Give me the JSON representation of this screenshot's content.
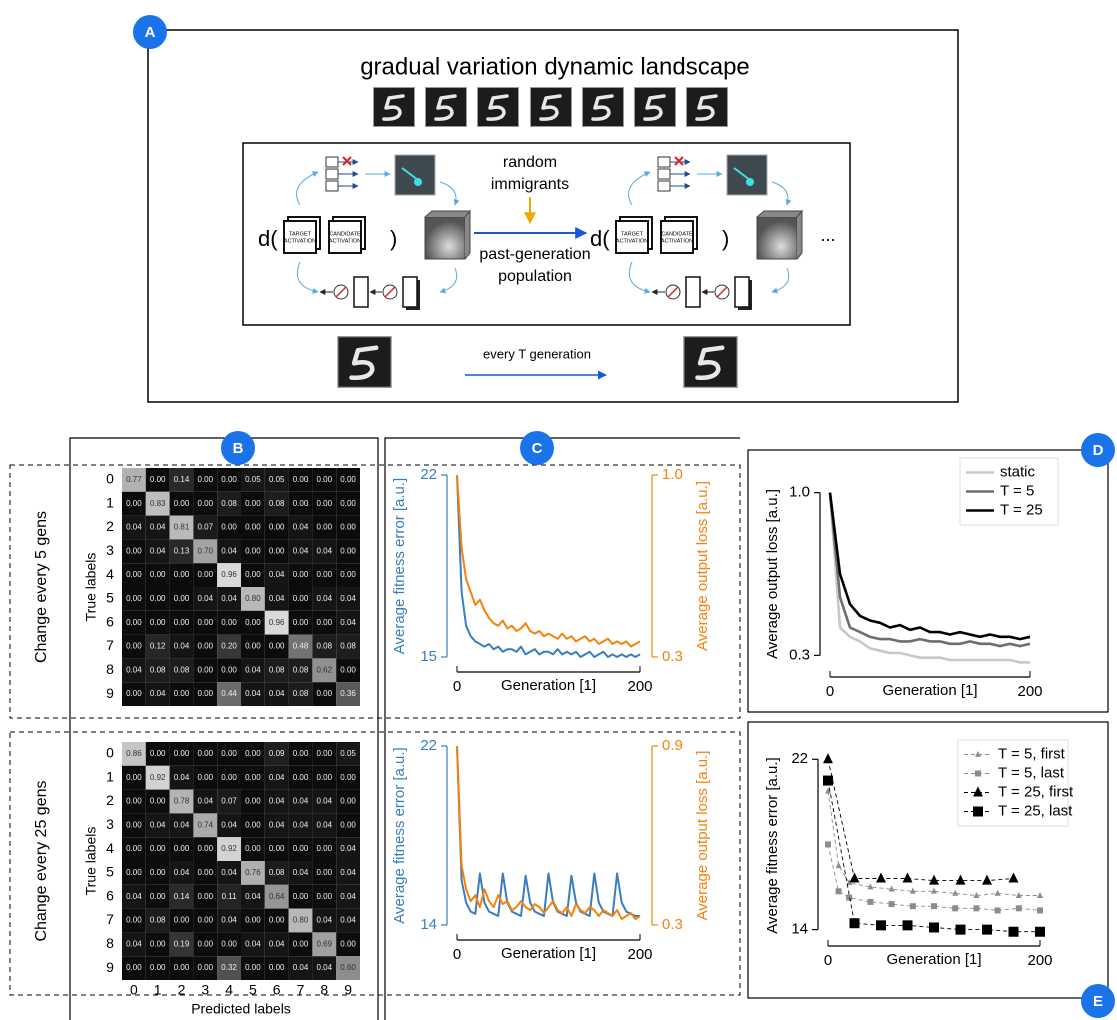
{
  "panels": [
    "A",
    "B",
    "C",
    "D",
    "E"
  ],
  "diagram": {
    "title": "gradual variation dynamic landscape",
    "d_open": "d(",
    "d_close": ")",
    "target_lines": [
      "TARGET",
      "ACTIVATION"
    ],
    "candidate_lines": [
      "CANDIDATE",
      "ACTIVATION"
    ],
    "immigrants_lines": [
      "random",
      "immigrants"
    ],
    "population_lines": [
      "past-generation",
      "population"
    ],
    "ellipsis": "...",
    "every": "every T generation"
  },
  "chart_data": [
    {
      "type": "heatmap",
      "title": "Change every 5 gens",
      "ylabel": "True labels",
      "row_labels": [
        "0",
        "1",
        "2",
        "3",
        "4",
        "5",
        "6",
        "7",
        "8",
        "9"
      ],
      "values": [
        [
          0.77,
          0.0,
          0.14,
          0.0,
          0.0,
          0.05,
          0.05,
          0.0,
          0.0,
          0.0
        ],
        [
          0.0,
          0.83,
          0.0,
          0.0,
          0.08,
          0.0,
          0.08,
          0.0,
          0.0,
          0.0
        ],
        [
          0.04,
          0.04,
          0.81,
          0.07,
          0.0,
          0.0,
          0.0,
          0.04,
          0.0,
          0.0
        ],
        [
          0.0,
          0.04,
          0.13,
          0.7,
          0.04,
          0.0,
          0.0,
          0.04,
          0.04,
          0.0
        ],
        [
          0.0,
          0.0,
          0.0,
          0.0,
          0.96,
          0.0,
          0.04,
          0.0,
          0.0,
          0.0
        ],
        [
          0.0,
          0.0,
          0.0,
          0.04,
          0.04,
          0.8,
          0.04,
          0.0,
          0.04,
          0.04
        ],
        [
          0.0,
          0.0,
          0.0,
          0.0,
          0.0,
          0.0,
          0.96,
          0.0,
          0.0,
          0.04
        ],
        [
          0.0,
          0.12,
          0.04,
          0.0,
          0.2,
          0.0,
          0.0,
          0.48,
          0.08,
          0.08
        ],
        [
          0.04,
          0.08,
          0.08,
          0.0,
          0.0,
          0.04,
          0.08,
          0.08,
          0.62,
          0.0
        ],
        [
          0.0,
          0.04,
          0.0,
          0.0,
          0.44,
          0.04,
          0.04,
          0.08,
          0.0,
          0.36
        ]
      ],
      "value_labels": [
        [
          "0.77",
          "0.00",
          "0.14",
          "0.00",
          "0.00",
          "0.05",
          "0.05",
          "0.00",
          "0.00",
          "0.00"
        ],
        [
          "0.00",
          "0.83",
          "0.00",
          "0.00",
          "0.08",
          "0.00",
          "0.08",
          "0.00",
          "0.00",
          "0.00"
        ],
        [
          "0.04",
          "0.04",
          "0.81",
          "0.07",
          "0.00",
          "0.00",
          "0.00",
          "0.04",
          "0.00",
          "0.00"
        ],
        [
          "0.00",
          "0.04",
          "0.13",
          "0.70",
          "0.04",
          "0.00",
          "0.00",
          "0.04",
          "0.04",
          "0.00"
        ],
        [
          "0.00",
          "0.00",
          "0.00",
          "0.00",
          "0.96",
          "0.00",
          "0.04",
          "0.00",
          "0.00",
          "0.00"
        ],
        [
          "0.00",
          "0.00",
          "0.00",
          "0.04",
          "0.04",
          "0.80",
          "0.04",
          "0.00",
          "0.04",
          "0.04"
        ],
        [
          "0.00",
          "0.00",
          "0.00",
          "0.00",
          "0.00",
          "0.00",
          "0.96",
          "0.00",
          "0.00",
          "0.04"
        ],
        [
          "0.00",
          "0.12",
          "0.04",
          "0.00",
          "0.20",
          "0.00",
          "0.00",
          "0.48",
          "0.08",
          "0.08"
        ],
        [
          "0.04",
          "0.08",
          "0.08",
          "0.00",
          "0.00",
          "0.04",
          "0.08",
          "0.08",
          "0.62",
          "0.00"
        ],
        [
          "0.00",
          "0.04",
          "0.00",
          "0.00",
          "0.44",
          "0.04",
          "0.04",
          "0.08",
          "0.00",
          "0.36"
        ]
      ]
    },
    {
      "type": "heatmap",
      "title": "Change every 25 gens",
      "ylabel": "True labels",
      "xlabel": "Predicted labels",
      "row_labels": [
        "0",
        "1",
        "2",
        "3",
        "4",
        "5",
        "6",
        "7",
        "8",
        "9"
      ],
      "col_labels": [
        "0",
        "1",
        "2",
        "3",
        "4",
        "5",
        "6",
        "7",
        "8",
        "9"
      ],
      "values": [
        [
          0.86,
          0.0,
          0.0,
          0.0,
          0.0,
          0.0,
          0.09,
          0.0,
          0.0,
          0.05
        ],
        [
          0.0,
          0.92,
          0.04,
          0.0,
          0.0,
          0.0,
          0.04,
          0.0,
          0.0,
          0.0
        ],
        [
          0.0,
          0.0,
          0.78,
          0.04,
          0.07,
          0.0,
          0.04,
          0.04,
          0.04,
          0.0
        ],
        [
          0.0,
          0.04,
          0.04,
          0.74,
          0.04,
          0.0,
          0.04,
          0.04,
          0.04,
          0.0
        ],
        [
          0.0,
          0.0,
          0.0,
          0.0,
          0.92,
          0.0,
          0.0,
          0.0,
          0.0,
          0.04
        ],
        [
          0.0,
          0.0,
          0.04,
          0.0,
          0.04,
          0.76,
          0.08,
          0.04,
          0.0,
          0.04
        ],
        [
          0.04,
          0.0,
          0.14,
          0.0,
          0.11,
          0.04,
          0.64,
          0.0,
          0.0,
          0.04
        ],
        [
          0.0,
          0.08,
          0.0,
          0.0,
          0.04,
          0.0,
          0.0,
          0.8,
          0.04,
          0.04
        ],
        [
          0.04,
          0.0,
          0.19,
          0.0,
          0.0,
          0.04,
          0.04,
          0.0,
          0.69,
          0.0
        ],
        [
          0.0,
          0.0,
          0.0,
          0.0,
          0.32,
          0.0,
          0.0,
          0.04,
          0.04,
          0.6
        ]
      ],
      "value_labels": [
        [
          "0.86",
          "0.00",
          "0.00",
          "0.00",
          "0.00",
          "0.00",
          "0.09",
          "0.00",
          "0.00",
          "0.05"
        ],
        [
          "0.00",
          "0.92",
          "0.04",
          "0.00",
          "0.00",
          "0.00",
          "0.04",
          "0.00",
          "0.00",
          "0.00"
        ],
        [
          "0.00",
          "0.00",
          "0.78",
          "0.04",
          "0.07",
          "0.00",
          "0.04",
          "0.04",
          "0.04",
          "0.00"
        ],
        [
          "0.00",
          "0.04",
          "0.04",
          "0.74",
          "0.04",
          "0.00",
          "0.04",
          "0.04",
          "0.04",
          "0.00"
        ],
        [
          "0.00",
          "0.00",
          "0.00",
          "0.00",
          "0.92",
          "0.00",
          "0.00",
          "0.00",
          "0.00",
          "0.04"
        ],
        [
          "0.00",
          "0.00",
          "0.04",
          "0.00",
          "0.04",
          "0.76",
          "0.08",
          "0.04",
          "0.00",
          "0.04"
        ],
        [
          "0.04",
          "0.00",
          "0.14",
          "0.00",
          "0.11",
          "0.04",
          "0.64",
          "0.00",
          "0.00",
          "0.04"
        ],
        [
          "0.00",
          "0.08",
          "0.00",
          "0.00",
          "0.04",
          "0.00",
          "0.00",
          "0.80",
          "0.04",
          "0.04"
        ],
        [
          "0.04",
          "0.00",
          "0.19",
          "0.00",
          "0.00",
          "0.04",
          "0.04",
          "0.00",
          "0.69",
          "0.00"
        ],
        [
          "0.00",
          "0.00",
          "0.00",
          "0.00",
          "0.32",
          "0.00",
          "0.00",
          "0.04",
          "0.04",
          "0.60"
        ]
      ]
    },
    {
      "type": "line",
      "xlabel": "Generation [1]",
      "ylabel": "Average fitness error [a.u.]",
      "y2label": "Average output loss [a.u.]",
      "axis_colors": true,
      "x": [
        0,
        5,
        10,
        15,
        20,
        25,
        30,
        35,
        40,
        45,
        50,
        55,
        60,
        65,
        70,
        75,
        80,
        85,
        90,
        95,
        100,
        105,
        110,
        115,
        120,
        125,
        130,
        135,
        140,
        145,
        150,
        155,
        160,
        165,
        170,
        175,
        180,
        185,
        190,
        195,
        200
      ],
      "xlim": [
        0,
        200
      ],
      "xticks": [
        0,
        200
      ],
      "ylim": [
        15,
        22
      ],
      "yticks": [
        15,
        22
      ],
      "y2lim": [
        0.3,
        1.0
      ],
      "y2ticks": [
        0.3,
        {
          "value": 1.0,
          "label": "1.0"
        }
      ],
      "series": [
        {
          "color": "#3a7dbf",
          "values": [
            22,
            17.5,
            16.2,
            15.8,
            15.6,
            15.5,
            15.4,
            15.5,
            15.3,
            15.4,
            15.2,
            15.3,
            15.3,
            15.2,
            15.4,
            15.1,
            15.2,
            15.3,
            15.1,
            15.2,
            15.2,
            15.1,
            15.3,
            15.1,
            15.2,
            15.1,
            15.2,
            15.0,
            15.1,
            15.2,
            15.0,
            15.1,
            15.2,
            15.0,
            15.1,
            15.0,
            15.1,
            15.0,
            15.1,
            15.0,
            15.1
          ]
        },
        {
          "color": "#f5820d",
          "axis": "y2",
          "values": [
            1.0,
            0.72,
            0.6,
            0.55,
            0.5,
            0.52,
            0.48,
            0.45,
            0.43,
            0.42,
            0.44,
            0.41,
            0.42,
            0.4,
            0.41,
            0.43,
            0.4,
            0.39,
            0.4,
            0.38,
            0.39,
            0.38,
            0.37,
            0.39,
            0.37,
            0.38,
            0.36,
            0.37,
            0.38,
            0.36,
            0.37,
            0.35,
            0.36,
            0.37,
            0.35,
            0.36,
            0.35,
            0.36,
            0.34,
            0.35,
            0.36
          ]
        }
      ]
    },
    {
      "type": "line",
      "xlabel": "Generation [1]",
      "ylabel": "Average fitness error [a.u.]",
      "y2label": "Average output loss [a.u.]",
      "axis_colors": true,
      "x": [
        0,
        5,
        10,
        15,
        20,
        25,
        30,
        35,
        40,
        45,
        50,
        55,
        60,
        65,
        70,
        75,
        80,
        85,
        90,
        95,
        100,
        105,
        110,
        115,
        120,
        125,
        130,
        135,
        140,
        145,
        150,
        155,
        160,
        165,
        170,
        175,
        180,
        185,
        190,
        195,
        200
      ],
      "xlim": [
        0,
        200
      ],
      "xticks": [
        0,
        200
      ],
      "ylim": [
        14,
        22
      ],
      "yticks": [
        14,
        22
      ],
      "y2lim": [
        0.3,
        0.9
      ],
      "y2ticks": [
        0.3,
        0.9
      ],
      "series": [
        {
          "color": "#3a7dbf",
          "values": [
            22,
            16,
            15,
            14.6,
            14.5,
            16.3,
            15,
            14.6,
            14.5,
            14.4,
            16.3,
            15,
            14.6,
            14.5,
            14.4,
            16.2,
            15,
            14.6,
            14.5,
            14.4,
            16.3,
            15,
            14.6,
            14.5,
            14.4,
            16.2,
            15,
            14.6,
            14.5,
            14.4,
            16.3,
            15,
            14.6,
            14.5,
            14.4,
            16.3,
            15,
            14.6,
            14.5,
            14.4,
            14.4
          ]
        },
        {
          "color": "#f5820d",
          "axis": "y2",
          "values": [
            0.9,
            0.5,
            0.42,
            0.38,
            0.4,
            0.36,
            0.42,
            0.38,
            0.36,
            0.4,
            0.37,
            0.38,
            0.35,
            0.36,
            0.38,
            0.36,
            0.35,
            0.37,
            0.36,
            0.34,
            0.36,
            0.38,
            0.35,
            0.34,
            0.36,
            0.33,
            0.37,
            0.35,
            0.34,
            0.36,
            0.35,
            0.33,
            0.35,
            0.34,
            0.33,
            0.35,
            0.32,
            0.33,
            0.34,
            0.32,
            0.33
          ]
        }
      ]
    },
    {
      "type": "line",
      "xlabel": "Generation [1]",
      "ylabel": "Average output loss [a.u.]",
      "legend": "upper right",
      "x": [
        0,
        10,
        20,
        30,
        40,
        50,
        60,
        70,
        80,
        90,
        100,
        110,
        120,
        130,
        140,
        150,
        160,
        170,
        180,
        190,
        200
      ],
      "xlim": [
        0,
        200
      ],
      "xticks": [
        0,
        200
      ],
      "ylim": [
        0.25,
        1.05
      ],
      "yticks": [
        0.3,
        {
          "value": 1.0,
          "label": "1.0"
        }
      ],
      "series": [
        {
          "name": "static",
          "color": "#c8c8c8",
          "values": [
            1.0,
            0.42,
            0.38,
            0.36,
            0.33,
            0.32,
            0.31,
            0.31,
            0.3,
            0.29,
            0.29,
            0.29,
            0.28,
            0.28,
            0.28,
            0.28,
            0.28,
            0.28,
            0.28,
            0.27,
            0.27
          ]
        },
        {
          "name": "T = 5",
          "color": "#6e6e6e",
          "values": [
            1.0,
            0.55,
            0.42,
            0.4,
            0.38,
            0.37,
            0.37,
            0.36,
            0.36,
            0.37,
            0.36,
            0.36,
            0.35,
            0.35,
            0.36,
            0.35,
            0.35,
            0.34,
            0.35,
            0.34,
            0.35
          ]
        },
        {
          "name": "T = 25",
          "color": "#000000",
          "values": [
            1.0,
            0.65,
            0.52,
            0.47,
            0.45,
            0.44,
            0.42,
            0.43,
            0.41,
            0.42,
            0.4,
            0.4,
            0.39,
            0.4,
            0.39,
            0.38,
            0.39,
            0.38,
            0.38,
            0.37,
            0.38
          ]
        }
      ]
    },
    {
      "type": "line",
      "xlabel": "Generation [1]",
      "ylabel": "Average fitness error [a.u.]",
      "legend": "upper right",
      "xlim": [
        0,
        200
      ],
      "xticks": [
        0,
        200
      ],
      "ylim": [
        13.7,
        22.2
      ],
      "yticks": [
        14,
        22
      ],
      "series": [
        {
          "name": "T = 5, first",
          "color": "#8c8c8c",
          "marker": "triangle",
          "dash": true,
          "x": [
            0,
            10,
            20,
            40,
            60,
            80,
            100,
            120,
            140,
            160,
            180,
            200
          ],
          "values": [
            20.5,
            17,
            16.2,
            16,
            15.9,
            15.8,
            15.8,
            15.7,
            15.6,
            15.7,
            15.6,
            15.6
          ]
        },
        {
          "name": "T = 5, last",
          "color": "#8c8c8c",
          "marker": "square",
          "dash": true,
          "x": [
            0,
            10,
            20,
            40,
            60,
            80,
            100,
            120,
            140,
            160,
            180,
            200
          ],
          "values": [
            18,
            15.8,
            15.5,
            15.3,
            15.2,
            15.1,
            15.1,
            15.0,
            15.0,
            14.9,
            15.0,
            14.9
          ]
        },
        {
          "name": "T = 25, first",
          "color": "#000000",
          "marker": "triangle",
          "dash": true,
          "x": [
            0,
            25,
            50,
            75,
            100,
            125,
            150,
            175
          ],
          "values": [
            22,
            16.4,
            16.4,
            16.4,
            16.3,
            16.3,
            16.3,
            16.4
          ]
        },
        {
          "name": "T = 25, last",
          "color": "#000000",
          "marker": "square",
          "dash": true,
          "x": [
            0,
            25,
            50,
            75,
            100,
            125,
            150,
            175,
            200
          ],
          "values": [
            21,
            14.3,
            14.2,
            14.2,
            14.1,
            14.0,
            14.0,
            13.9,
            13.9
          ]
        }
      ]
    }
  ]
}
